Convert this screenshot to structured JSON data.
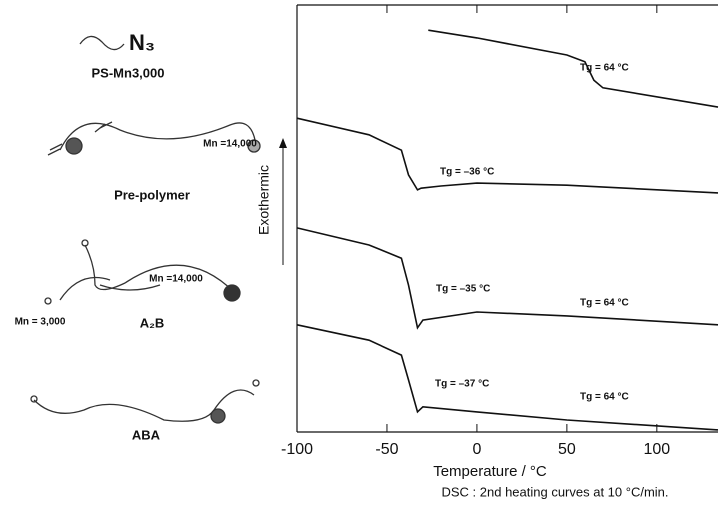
{
  "chart_data": {
    "type": "line",
    "xlabel": "Temperature / °C",
    "ylabel": "Exothermic",
    "caption": "DSC : 2nd heating curves at 10 °C/min.",
    "xlim": [
      -100,
      134
    ],
    "xticks": [
      -100,
      -50,
      0,
      50,
      100
    ],
    "ylim": [
      0,
      100
    ],
    "series": [
      {
        "color": "#111111",
        "x": [
          -27,
          0,
          50,
          60,
          65,
          70,
          134
        ],
        "values": [
          94.1,
          92.3,
          88.3,
          86.7,
          82.4,
          80.6,
          76.1
        ]
      },
      {
        "color": "#111111",
        "x": [
          -100,
          -60,
          -42,
          -38,
          -33,
          -31,
          -20,
          0,
          50,
          134
        ],
        "values": [
          73.5,
          69.6,
          66.0,
          60.2,
          56.7,
          57.1,
          57.6,
          58.3,
          57.8,
          56.0
        ]
      },
      {
        "color": "#111111",
        "x": [
          -100,
          -60,
          -42,
          -38,
          -33,
          -30,
          0,
          50,
          134
        ],
        "values": [
          47.8,
          43.8,
          40.7,
          34.4,
          24.4,
          26.2,
          28.1,
          27.2,
          25.1
        ]
      },
      {
        "color": "#111111",
        "x": [
          -100,
          -60,
          -42,
          -38,
          -33,
          -30,
          0,
          50,
          134
        ],
        "values": [
          25.1,
          21.5,
          18.0,
          12.2,
          4.7,
          5.9,
          4.7,
          2.8,
          0.5
        ]
      }
    ],
    "annotations": [
      "Tg = 64 °C",
      "Tg = –36 °C",
      "Tg = –35 °C",
      "Tg = 64 °C",
      "Tg = –37 °C",
      "Tg = 64 °C"
    ]
  },
  "schematic": {
    "azide": "N₃",
    "ps": "PS-Mn3,000",
    "prepolymer_mn": "Mn =14,000",
    "prepolymer": "Pre-polymer",
    "a2b_mn_long": "Mn =14,000",
    "a2b_mn_short": "Mn = 3,000",
    "a2b": "A₂B",
    "aba": "ABA"
  }
}
